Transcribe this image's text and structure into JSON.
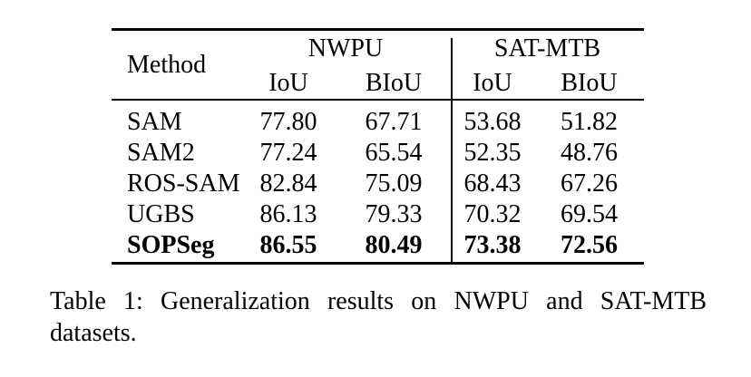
{
  "table": {
    "header": {
      "method": "Method",
      "groups": [
        {
          "label": "NWPU",
          "sub": [
            "IoU",
            "BIoU"
          ]
        },
        {
          "label": "SAT-MTB",
          "sub": [
            "IoU",
            "BIoU"
          ]
        }
      ]
    },
    "rows": [
      {
        "method": "SAM",
        "values": [
          "77.80",
          "67.71",
          "53.68",
          "51.82"
        ],
        "bold": false
      },
      {
        "method": "SAM2",
        "values": [
          "77.24",
          "65.54",
          "52.35",
          "48.76"
        ],
        "bold": false
      },
      {
        "method": "ROS-SAM",
        "values": [
          "82.84",
          "75.09",
          "68.43",
          "67.26"
        ],
        "bold": false
      },
      {
        "method": "UGBS",
        "values": [
          "86.13",
          "79.33",
          "70.32",
          "69.54"
        ],
        "bold": false
      },
      {
        "method": "SOPSeg",
        "values": [
          "86.55",
          "80.49",
          "73.38",
          "72.56"
        ],
        "bold": true
      }
    ]
  },
  "caption": {
    "line1": "Table 1: Generalization results on NWPU and SAT-MTB",
    "line2": "datasets."
  },
  "colors": {
    "text": "#000000",
    "background": "#ffffff",
    "rule": "#000000"
  }
}
